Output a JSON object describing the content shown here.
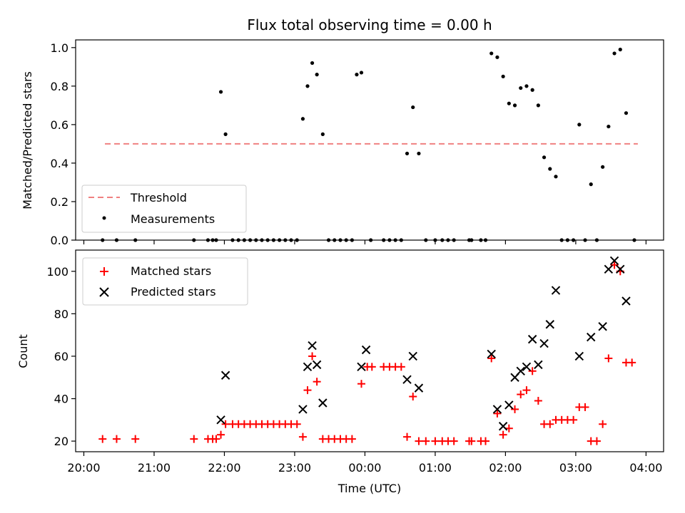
{
  "title": "Flux total observing time = 0.00 h",
  "chart_data": [
    {
      "type": "scatter",
      "panel": "top",
      "ylabel": "Matched/Predicted stars",
      "xlabel": "",
      "ylim": [
        0,
        1.04
      ],
      "xlim": [
        "20:00",
        "04:00"
      ],
      "yticks": [
        "0.0",
        "0.2",
        "0.4",
        "0.6",
        "0.8",
        "1.0"
      ],
      "legend_position": "lower-left",
      "grid": false,
      "legend": [
        {
          "label": "Threshold",
          "style": "dashed-line",
          "color": "#f08080"
        },
        {
          "label": "Measurements",
          "style": "dot",
          "color": "#000000"
        }
      ],
      "threshold": {
        "name": "Threshold",
        "value": 0.5,
        "x_start": "20:18",
        "x_end": "03:53",
        "color": "#f08080"
      },
      "series": [
        {
          "name": "Measurements",
          "color": "#000000",
          "points": [
            [
              "20:16",
              0
            ],
            [
              "20:28",
              0
            ],
            [
              "20:44",
              0
            ],
            [
              "21:34",
              0
            ],
            [
              "21:46",
              0
            ],
            [
              "21:50",
              0
            ],
            [
              "21:53",
              0
            ],
            [
              "21:57",
              0.77
            ],
            [
              "22:01",
              0.55
            ],
            [
              "22:07",
              0
            ],
            [
              "22:12",
              0
            ],
            [
              "22:17",
              0
            ],
            [
              "22:22",
              0
            ],
            [
              "22:27",
              0
            ],
            [
              "22:32",
              0
            ],
            [
              "22:37",
              0
            ],
            [
              "22:42",
              0
            ],
            [
              "22:47",
              0
            ],
            [
              "22:52",
              0
            ],
            [
              "22:57",
              0
            ],
            [
              "23:02",
              0
            ],
            [
              "23:07",
              0.63
            ],
            [
              "23:11",
              0.8
            ],
            [
              "23:15",
              0.92
            ],
            [
              "23:19",
              0.86
            ],
            [
              "23:24",
              0.55
            ],
            [
              "23:29",
              0
            ],
            [
              "23:34",
              0
            ],
            [
              "23:39",
              0
            ],
            [
              "23:44",
              0
            ],
            [
              "23:49",
              0
            ],
            [
              "23:53",
              0.86
            ],
            [
              "23:57",
              0.87
            ],
            [
              "00:05",
              0
            ],
            [
              "00:16",
              0
            ],
            [
              "00:21",
              0
            ],
            [
              "00:26",
              0
            ],
            [
              "00:31",
              0
            ],
            [
              "00:36",
              0.45
            ],
            [
              "00:41",
              0.69
            ],
            [
              "00:46",
              0.45
            ],
            [
              "00:52",
              0
            ],
            [
              "01:00",
              0
            ],
            [
              "01:06",
              0
            ],
            [
              "01:11",
              0
            ],
            [
              "01:16",
              0
            ],
            [
              "01:29",
              0
            ],
            [
              "01:31",
              0
            ],
            [
              "01:39",
              0
            ],
            [
              "01:43",
              0
            ],
            [
              "01:48",
              0.97
            ],
            [
              "01:53",
              0.95
            ],
            [
              "01:58",
              0.85
            ],
            [
              "02:03",
              0.71
            ],
            [
              "02:08",
              0.7
            ],
            [
              "02:13",
              0.79
            ],
            [
              "02:18",
              0.8
            ],
            [
              "02:23",
              0.78
            ],
            [
              "02:28",
              0.7
            ],
            [
              "02:33",
              0.43
            ],
            [
              "02:38",
              0.37
            ],
            [
              "02:43",
              0.33
            ],
            [
              "02:48",
              0
            ],
            [
              "02:53",
              0
            ],
            [
              "02:58",
              0
            ],
            [
              "03:03",
              0.6
            ],
            [
              "03:08",
              0
            ],
            [
              "03:13",
              0.29
            ],
            [
              "03:18",
              0
            ],
            [
              "03:23",
              0.38
            ],
            [
              "03:28",
              0.59
            ],
            [
              "03:33",
              0.97
            ],
            [
              "03:38",
              0.99
            ],
            [
              "03:43",
              0.66
            ],
            [
              "03:50",
              0
            ]
          ]
        }
      ]
    },
    {
      "type": "scatter",
      "panel": "bottom",
      "ylabel": "Count",
      "xlabel": "Time (UTC)",
      "ylim": [
        15,
        110
      ],
      "xlim": [
        "20:00",
        "04:00"
      ],
      "xticks": [
        "20:00",
        "21:00",
        "22:00",
        "23:00",
        "00:00",
        "01:00",
        "02:00",
        "03:00",
        "04:00"
      ],
      "yticks": [
        "20",
        "40",
        "60",
        "80",
        "100"
      ],
      "legend_position": "upper-left",
      "grid": false,
      "legend": [
        {
          "label": "Matched stars",
          "marker": "+",
          "color": "#ff0000"
        },
        {
          "label": "Predicted stars",
          "marker": "x",
          "color": "#000000"
        }
      ],
      "series": [
        {
          "name": "Matched stars",
          "marker": "+",
          "color": "#ff0000",
          "points": [
            [
              "20:16",
              21
            ],
            [
              "20:28",
              21
            ],
            [
              "20:44",
              21
            ],
            [
              "21:34",
              21
            ],
            [
              "21:46",
              21
            ],
            [
              "21:50",
              21
            ],
            [
              "21:53",
              21
            ],
            [
              "21:57",
              23
            ],
            [
              "22:01",
              28
            ],
            [
              "22:07",
              28
            ],
            [
              "22:12",
              28
            ],
            [
              "22:17",
              28
            ],
            [
              "22:22",
              28
            ],
            [
              "22:27",
              28
            ],
            [
              "22:32",
              28
            ],
            [
              "22:37",
              28
            ],
            [
              "22:42",
              28
            ],
            [
              "22:47",
              28
            ],
            [
              "22:52",
              28
            ],
            [
              "22:57",
              28
            ],
            [
              "23:02",
              28
            ],
            [
              "23:07",
              22
            ],
            [
              "23:11",
              44
            ],
            [
              "23:15",
              60
            ],
            [
              "23:19",
              48
            ],
            [
              "23:24",
              21
            ],
            [
              "23:29",
              21
            ],
            [
              "23:34",
              21
            ],
            [
              "23:39",
              21
            ],
            [
              "23:44",
              21
            ],
            [
              "23:49",
              21
            ],
            [
              "23:57",
              47
            ],
            [
              "00:02",
              55
            ],
            [
              "00:06",
              55
            ],
            [
              "00:16",
              55
            ],
            [
              "00:21",
              55
            ],
            [
              "00:26",
              55
            ],
            [
              "00:31",
              55
            ],
            [
              "00:36",
              22
            ],
            [
              "00:41",
              41
            ],
            [
              "00:46",
              20
            ],
            [
              "00:52",
              20
            ],
            [
              "01:00",
              20
            ],
            [
              "01:06",
              20
            ],
            [
              "01:11",
              20
            ],
            [
              "01:16",
              20
            ],
            [
              "01:29",
              20
            ],
            [
              "01:31",
              20
            ],
            [
              "01:39",
              20
            ],
            [
              "01:43",
              20
            ],
            [
              "01:48",
              59
            ],
            [
              "01:53",
              33
            ],
            [
              "01:58",
              23
            ],
            [
              "02:03",
              26
            ],
            [
              "02:08",
              35
            ],
            [
              "02:13",
              42
            ],
            [
              "02:18",
              44
            ],
            [
              "02:23",
              53
            ],
            [
              "02:28",
              39
            ],
            [
              "02:33",
              28
            ],
            [
              "02:38",
              28
            ],
            [
              "02:43",
              30
            ],
            [
              "02:48",
              30
            ],
            [
              "02:53",
              30
            ],
            [
              "02:58",
              30
            ],
            [
              "03:03",
              36
            ],
            [
              "03:08",
              36
            ],
            [
              "03:13",
              20
            ],
            [
              "03:18",
              20
            ],
            [
              "03:23",
              28
            ],
            [
              "03:28",
              59
            ],
            [
              "03:33",
              103
            ],
            [
              "03:38",
              100
            ],
            [
              "03:43",
              57
            ],
            [
              "03:48",
              57
            ]
          ]
        },
        {
          "name": "Predicted stars",
          "marker": "x",
          "color": "#000000",
          "points": [
            [
              "21:57",
              30
            ],
            [
              "22:01",
              51
            ],
            [
              "23:07",
              35
            ],
            [
              "23:11",
              55
            ],
            [
              "23:15",
              65
            ],
            [
              "23:19",
              56
            ],
            [
              "23:24",
              38
            ],
            [
              "23:57",
              55
            ],
            [
              "00:01",
              63
            ],
            [
              "00:36",
              49
            ],
            [
              "00:41",
              60
            ],
            [
              "00:46",
              45
            ],
            [
              "01:48",
              61
            ],
            [
              "01:53",
              35
            ],
            [
              "01:58",
              27
            ],
            [
              "02:03",
              37
            ],
            [
              "02:08",
              50
            ],
            [
              "02:13",
              53
            ],
            [
              "02:18",
              55
            ],
            [
              "02:23",
              68
            ],
            [
              "02:28",
              56
            ],
            [
              "02:33",
              66
            ],
            [
              "02:38",
              75
            ],
            [
              "02:43",
              91
            ],
            [
              "03:03",
              60
            ],
            [
              "03:13",
              69
            ],
            [
              "03:23",
              74
            ],
            [
              "03:28",
              101
            ],
            [
              "03:33",
              105
            ],
            [
              "03:38",
              101
            ],
            [
              "03:43",
              86
            ]
          ]
        }
      ]
    }
  ]
}
